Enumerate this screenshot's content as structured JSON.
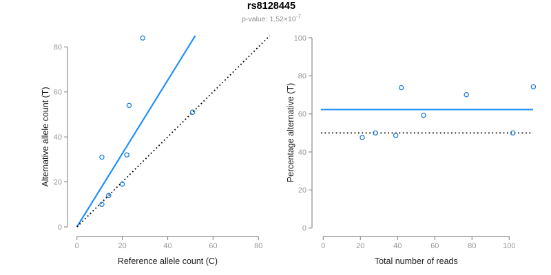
{
  "header": {
    "title": "rs8128445",
    "pvalue_prefix": "p-value: 1.52×10",
    "pvalue_exponent": "-7"
  },
  "colors": {
    "accent_line": "#1e8fff",
    "point_stroke": "#1c7cd6",
    "reference_line": "#000000",
    "axis": "#8c8c8c",
    "tick_label": "#969696"
  },
  "chart_data": [
    {
      "id": "allele-counts",
      "type": "scatter",
      "xlabel": "Reference allele count (C)",
      "ylabel": "Alternative allele count (T)",
      "xticks": [
        0,
        20,
        40,
        60,
        80
      ],
      "yticks": [
        0,
        20,
        40,
        60,
        80
      ],
      "xlim": [
        0,
        85.5
      ],
      "ylim": [
        0,
        85
      ],
      "grid": false,
      "points": [
        {
          "x": 11,
          "y": 31
        },
        {
          "x": 23,
          "y": 54
        },
        {
          "x": 29,
          "y": 84
        },
        {
          "x": 22,
          "y": 32
        },
        {
          "x": 11,
          "y": 10
        },
        {
          "x": 14,
          "y": 14
        },
        {
          "x": 20,
          "y": 19
        },
        {
          "x": 51,
          "y": 51
        }
      ],
      "lines": [
        {
          "name": "fit-line",
          "style": "solid",
          "color_key": "accent_line",
          "slope": 1.63,
          "intercept": 0
        },
        {
          "name": "identity-line",
          "style": "dotted",
          "color_key": "reference_line",
          "slope": 1,
          "intercept": 0
        }
      ]
    },
    {
      "id": "percentage-vs-depth",
      "type": "scatter",
      "xlabel": "Total number of reads",
      "ylabel": "Percentage alternative (T)",
      "xticks": [
        0,
        20,
        40,
        60,
        80,
        100
      ],
      "yticks": [
        0,
        20,
        40,
        60,
        80,
        100
      ],
      "xlim": [
        0,
        117
      ],
      "ylim": [
        0,
        100
      ],
      "grid": false,
      "points": [
        {
          "x": 42,
          "y": 73.8
        },
        {
          "x": 77,
          "y": 70.1
        },
        {
          "x": 113,
          "y": 74.3
        },
        {
          "x": 54,
          "y": 59.3
        },
        {
          "x": 21,
          "y": 47.6
        },
        {
          "x": 28,
          "y": 50
        },
        {
          "x": 39,
          "y": 48.7
        },
        {
          "x": 102,
          "y": 50
        }
      ],
      "lines": [
        {
          "name": "mean-line",
          "style": "solid",
          "color_key": "accent_line",
          "hline": 62.3
        },
        {
          "name": "null-line",
          "style": "dotted",
          "color_key": "reference_line",
          "hline": 50
        }
      ]
    }
  ]
}
